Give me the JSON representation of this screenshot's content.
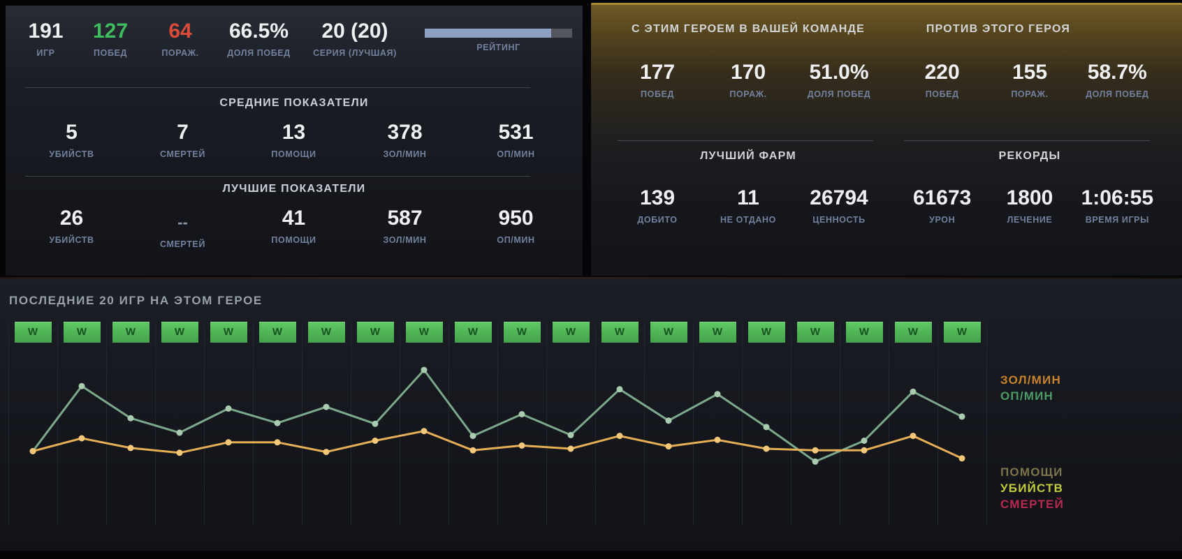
{
  "left_panel": {
    "summary": [
      {
        "value": "191",
        "label": "ИГР",
        "color": "#eef0f2"
      },
      {
        "value": "127",
        "label": "ПОБЕД",
        "color": "#3fbc5d"
      },
      {
        "value": "64",
        "label": "ПОРАЖ.",
        "color": "#da4b38"
      },
      {
        "value": "66.5%",
        "label": "ДОЛЯ ПОБЕД",
        "color": "#eef0f2"
      },
      {
        "value": "20 (20)",
        "label": "СЕРИЯ (ЛУЧШАЯ)",
        "color": "#eef0f2"
      }
    ],
    "rating": {
      "label": "РЕЙТИНГ",
      "percent": 86,
      "fill_color": "#8da0c6",
      "track_color": "#53565c"
    },
    "sections": [
      {
        "title": "СРЕДНИЕ ПОКАЗАТЕЛИ",
        "stats": [
          {
            "value": "5",
            "label": "УБИЙСТВ"
          },
          {
            "value": "7",
            "label": "СМЕРТЕЙ"
          },
          {
            "value": "13",
            "label": "ПОМОЩИ"
          },
          {
            "value": "378",
            "label": "ЗОЛ/МИН"
          },
          {
            "value": "531",
            "label": "ОП/МИН"
          }
        ]
      },
      {
        "title": "ЛУЧШИЕ ПОКАЗАТЕЛИ",
        "stats": [
          {
            "value": "26",
            "label": "УБИЙСТВ"
          },
          {
            "value": "--",
            "label": "СМЕРТЕЙ"
          },
          {
            "value": "41",
            "label": "ПОМОЩИ"
          },
          {
            "value": "587",
            "label": "ЗОЛ/МИН"
          },
          {
            "value": "950",
            "label": "ОП/МИН"
          }
        ]
      }
    ]
  },
  "right_panel": {
    "accent_color": "#ab8c33",
    "with_hero": {
      "title": "С ЭТИМ ГЕРОЕМ В ВАШЕЙ КОМАНДЕ",
      "stats": [
        {
          "value": "177",
          "label": "ПОБЕД"
        },
        {
          "value": "170",
          "label": "ПОРАЖ."
        },
        {
          "value": "51.0%",
          "label": "ДОЛЯ ПОБЕД"
        }
      ]
    },
    "against_hero": {
      "title": "ПРОТИВ ЭТОГО ГЕРОЯ",
      "stats": [
        {
          "value": "220",
          "label": "ПОБЕД"
        },
        {
          "value": "155",
          "label": "ПОРАЖ."
        },
        {
          "value": "58.7%",
          "label": "ДОЛЯ ПОБЕД"
        }
      ]
    },
    "best_farm": {
      "title": "ЛУЧШИЙ ФАРМ",
      "stats": [
        {
          "value": "139",
          "label": "ДОБИТО"
        },
        {
          "value": "11",
          "label": "НЕ ОТДАНО"
        },
        {
          "value": "26794",
          "label": "ЦЕННОСТЬ"
        }
      ]
    },
    "records": {
      "title": "РЕКОРДЫ",
      "stats": [
        {
          "value": "61673",
          "label": "УРОН"
        },
        {
          "value": "1800",
          "label": "ЛЕЧЕНИЕ"
        },
        {
          "value": "1:06:55",
          "label": "ВРЕМЯ ИГРЫ"
        }
      ]
    }
  },
  "recent_games": {
    "title": "ПОСЛЕДНИЕ 20 ИГР НА ЭТОМ ГЕРОЕ",
    "results": [
      "W",
      "W",
      "W",
      "W",
      "W",
      "W",
      "W",
      "W",
      "W",
      "W",
      "W",
      "W",
      "W",
      "W",
      "W",
      "W",
      "W",
      "W",
      "W",
      "W"
    ],
    "win_color": "#51b757"
  },
  "chart_data": {
    "type": "line",
    "x": [
      1,
      2,
      3,
      4,
      5,
      6,
      7,
      8,
      9,
      10,
      11,
      12,
      13,
      14,
      15,
      16,
      17,
      18,
      19,
      20
    ],
    "series": [
      {
        "name": "ОП/МИН",
        "line_color": "#7ca98b",
        "dot_color": "#a9cbb0",
        "values": [
          445,
          850,
          650,
          560,
          710,
          620,
          720,
          615,
          950,
          540,
          675,
          545,
          830,
          635,
          800,
          595,
          380,
          510,
          815,
          660
        ]
      },
      {
        "name": "ЗОЛ/МИН",
        "line_color": "#e6ae55",
        "dot_color": "#f4c878",
        "values": [
          445,
          525,
          465,
          435,
          500,
          500,
          440,
          510,
          570,
          450,
          480,
          460,
          540,
          475,
          515,
          460,
          450,
          450,
          540,
          400
        ]
      }
    ],
    "ylim": [
      0,
      1250
    ],
    "grid": "vertical",
    "grid_color": "#23272e",
    "legend_top": [
      {
        "label": "ЗОЛ/МИН",
        "color": "#c8822d"
      },
      {
        "label": "ОП/МИН",
        "color": "#4c9b66"
      }
    ],
    "legend_bottom": [
      {
        "label": "ПОМОЩИ",
        "color": "#7d744a"
      },
      {
        "label": "УБИЙСТВ",
        "color": "#c3cc3a"
      },
      {
        "label": "СМЕРТЕЙ",
        "color": "#b9294f"
      }
    ]
  }
}
